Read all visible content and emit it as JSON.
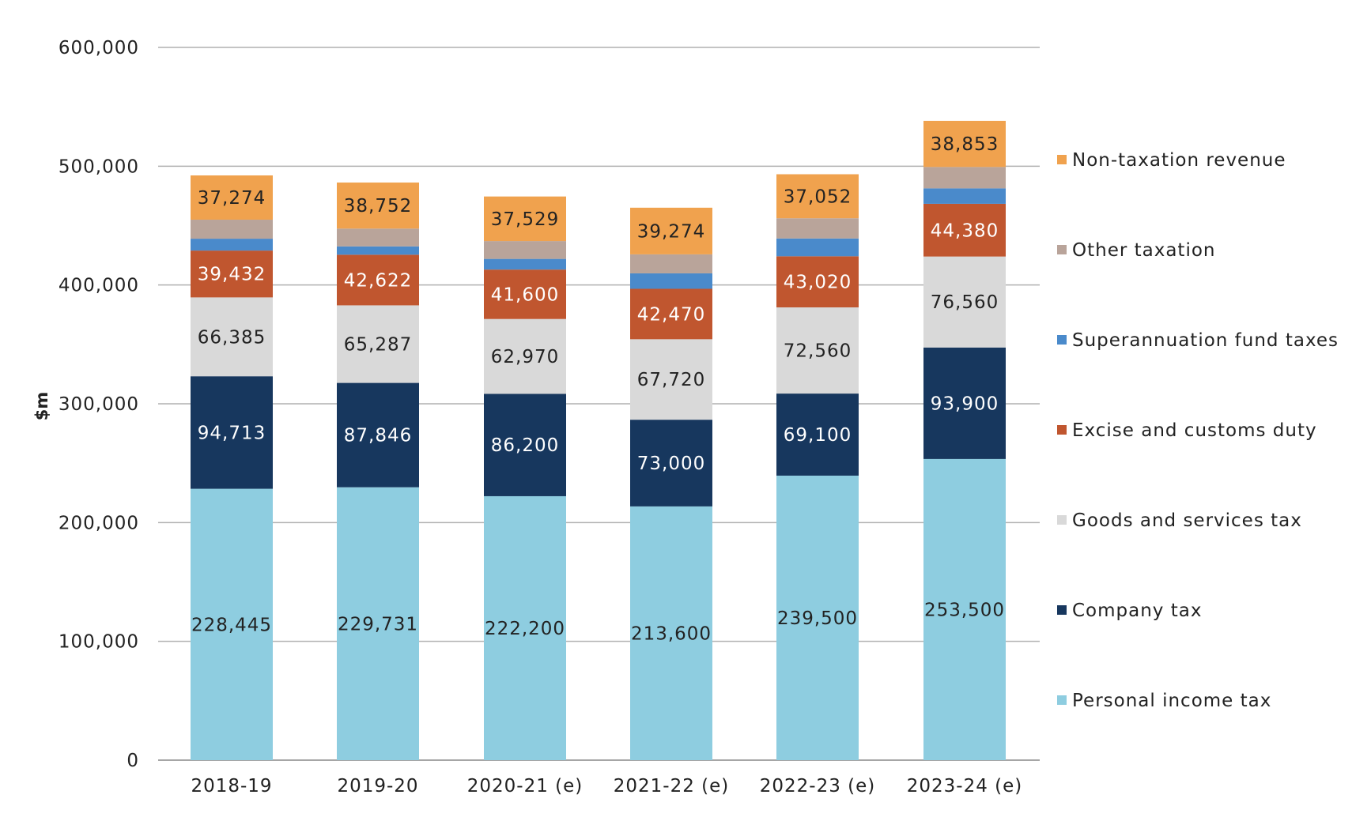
{
  "chart_data": {
    "type": "bar",
    "stacked": true,
    "title": "",
    "xlabel": "",
    "ylabel": "$m",
    "ylim": [
      0,
      600000
    ],
    "yticks": [
      0,
      100000,
      200000,
      300000,
      400000,
      500000,
      600000
    ],
    "ytick_labels": [
      "0",
      "100,000",
      "200,000",
      "300,000",
      "400,000",
      "500,000",
      "600,000"
    ],
    "grid": true,
    "legend_position": "right",
    "categories": [
      "2018-19",
      "2019-20",
      "2020-21 (e)",
      "2021-22 (e)",
      "2022-23 (e)",
      "2023-24 (e)"
    ],
    "series": [
      {
        "name": "Personal income tax",
        "color": "#8ecde0",
        "label_color": "#222222",
        "labeled": true,
        "values": [
          228445,
          229731,
          222200,
          213600,
          239500,
          253500
        ],
        "labels": [
          "228,445",
          "229,731",
          "222,200",
          "213,600",
          "239,500",
          "253,500"
        ]
      },
      {
        "name": "Company tax",
        "color": "#17375e",
        "label_color": "#ffffff",
        "labeled": true,
        "values": [
          94713,
          87846,
          86200,
          73000,
          69100,
          93900
        ],
        "labels": [
          "94,713",
          "87,846",
          "86,200",
          "73,000",
          "69,100",
          "93,900"
        ]
      },
      {
        "name": "Goods and services tax",
        "color": "#d9d9d9",
        "label_color": "#222222",
        "labeled": true,
        "values": [
          66385,
          65287,
          62970,
          67720,
          72560,
          76560
        ],
        "labels": [
          "66,385",
          "65,287",
          "62,970",
          "67,720",
          "72,560",
          "76,560"
        ]
      },
      {
        "name": "Excise and customs duty",
        "color": "#c0562f",
        "label_color": "#ffffff",
        "labeled": true,
        "values": [
          39432,
          42622,
          41600,
          42470,
          43020,
          44380
        ],
        "labels": [
          "39,432",
          "42,622",
          "41,600",
          "42,470",
          "43,020",
          "44,380"
        ]
      },
      {
        "name": "Superannuation fund taxes",
        "color": "#4a8acb",
        "label_color": "#ffffff",
        "labeled": false,
        "values": [
          10000,
          7000,
          9000,
          13000,
          15000,
          13000
        ],
        "labels": []
      },
      {
        "name": "Other taxation",
        "color": "#b9a49a",
        "label_color": "#222222",
        "labeled": false,
        "values": [
          16000,
          15000,
          15000,
          16000,
          17000,
          18000
        ],
        "labels": []
      },
      {
        "name": "Non-taxation revenue",
        "color": "#f0a24e",
        "label_color": "#222222",
        "labeled": true,
        "values": [
          37274,
          38752,
          37529,
          39274,
          37052,
          38853
        ],
        "labels": [
          "37,274",
          "38,752",
          "37,529",
          "39,274",
          "37,052",
          "38,853"
        ]
      }
    ],
    "legend_order": [
      "Non-taxation revenue",
      "Other taxation",
      "Superannuation fund taxes",
      "Excise and customs duty",
      "Goods and services tax",
      "Company tax",
      "Personal income tax"
    ]
  },
  "colors": {
    "gridline": "#b0b0b0",
    "axis": "#888888",
    "text": "#222222"
  }
}
